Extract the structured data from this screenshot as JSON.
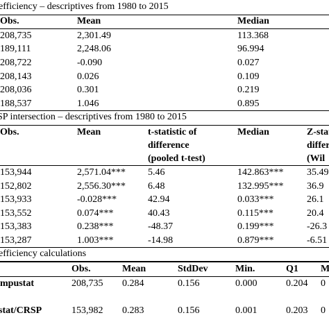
{
  "sec1": {
    "title": "efficiency – descriptives from 1980 to 2015",
    "headers": {
      "obs": "Obs.",
      "mean": "Mean",
      "median": "Median"
    },
    "rows": [
      {
        "obs": "208,735",
        "mean": "2,301.49",
        "median": "113.368"
      },
      {
        "obs": "189,111",
        "mean": "2,248.06",
        "median": "96.994"
      },
      {
        "obs": "208,722",
        "mean": "-0.090",
        "median": "0.027"
      },
      {
        "obs": "208,143",
        "mean": "0.026",
        "median": "0.109"
      },
      {
        "obs": "208,036",
        "mean": "0.301",
        "median": "0.219"
      },
      {
        "obs": "188,537",
        "mean": "1.046",
        "median": "0.895"
      }
    ]
  },
  "sec2": {
    "title": "SP intersection – descriptives from 1980 to 2015",
    "headers": {
      "obs": "Obs.",
      "mean": "Mean",
      "tstat": [
        "t-statistic of",
        "difference",
        "(pooled t-test)"
      ],
      "median": "Median",
      "zstat": [
        "Z-stat",
        "differ",
        "(Wil"
      ]
    },
    "rows": [
      {
        "obs": "153,944",
        "mean": "2,571.04***",
        "tstat": "5.46",
        "median": "142.863***",
        "z": "35.49"
      },
      {
        "obs": "152,802",
        "mean": "2,556.30***",
        "tstat": "6.48",
        "median": "132.995***",
        "z": "36.9"
      },
      {
        "obs": "153,933",
        "mean": "-0.028***",
        "tstat": "42.94",
        "median": "0.033***",
        "z": "26.1"
      },
      {
        "obs": "153,552",
        "mean": "0.074***",
        "tstat": "40.43",
        "median": "0.115***",
        "z": "20.4"
      },
      {
        "obs": "153,383",
        "mean": "0.238***",
        "tstat": "-48.37",
        "median": "0.199***",
        "z": "-26.3"
      },
      {
        "obs": "153,287",
        "mean": "1.003***",
        "tstat": "-14.98",
        "median": "0.879***",
        "z": "-6.51"
      }
    ]
  },
  "sec3": {
    "title": "efficiency calculations",
    "headers": {
      "obs": "Obs.",
      "mean": "Mean",
      "stddev": "StdDev",
      "min": "Min.",
      "q1": "Q1",
      "m": "M"
    },
    "rows": [
      {
        "label": "mpustat",
        "obs": "208,735",
        "mean": "0.284",
        "stddev": "0.156",
        "min": "0.000",
        "q1": "0.204",
        "m": "0"
      },
      {
        "label": "stat/CRSP",
        "obs": "153,982",
        "mean": "0.283",
        "stddev": "0.156",
        "min": "0.001",
        "q1": "0.203",
        "m": "0"
      }
    ]
  }
}
